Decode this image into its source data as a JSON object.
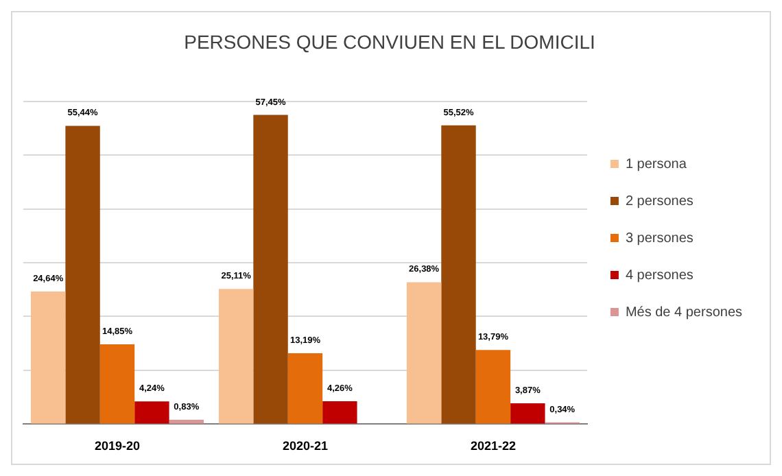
{
  "chart_data": {
    "type": "bar",
    "title": "PERSONES QUE CONVIUEN EN EL DOMICILI",
    "categories": [
      "2019-20",
      "2020-21",
      "2021-22"
    ],
    "series": [
      {
        "name": "1 persona",
        "color": "#f8bf90",
        "values": [
          24.64,
          25.11,
          26.38
        ],
        "value_labels": [
          "24,64%",
          "25,11%",
          "26,38%"
        ]
      },
      {
        "name": "2 persones",
        "color": "#984807",
        "values": [
          55.44,
          57.45,
          55.52
        ],
        "value_labels": [
          "55,44%",
          "57,45%",
          "55,52%"
        ]
      },
      {
        "name": "3 persones",
        "color": "#e46c0a",
        "values": [
          14.85,
          13.19,
          13.79
        ],
        "value_labels": [
          "14,85%",
          "13,19%",
          "13,79%"
        ]
      },
      {
        "name": "4 persones",
        "color": "#c00000",
        "values": [
          4.24,
          4.26,
          3.87
        ],
        "value_labels": [
          "4,24%",
          "4,26%",
          "3,87%"
        ]
      },
      {
        "name": "Més de 4 persones",
        "color": "#d99694",
        "values": [
          0.83,
          null,
          0.34
        ],
        "value_labels": [
          "0,83%",
          null,
          "0,34%"
        ]
      }
    ],
    "ylim": [
      0,
      60
    ],
    "yticks": [
      {
        "value": 0,
        "label": null
      },
      {
        "value": 10,
        "label": null
      },
      {
        "value": 20,
        "label": null
      },
      {
        "value": 30,
        "label": null
      },
      {
        "value": 40,
        "label": null
      },
      {
        "value": 50,
        "label": null
      },
      {
        "value": 60,
        "label": null
      }
    ],
    "tick_labels": "x",
    "grid": "y",
    "legend": "right"
  }
}
